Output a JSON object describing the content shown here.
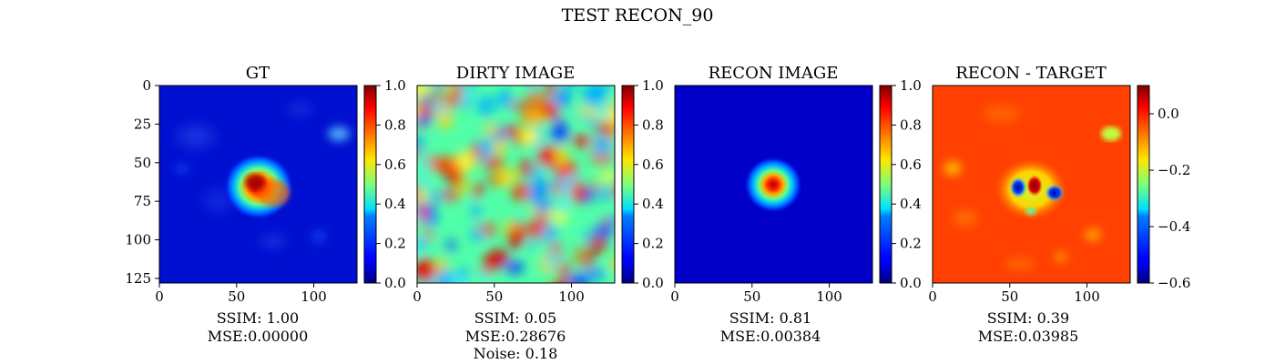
{
  "figure": {
    "suptitle": "TEST RECON_90"
  },
  "chart_data": [
    {
      "type": "heatmap",
      "title": "GT",
      "x_ticks": [
        0,
        50,
        100
      ],
      "y_ticks": [
        0,
        25,
        50,
        75,
        100,
        125
      ],
      "xlim": [
        0,
        128
      ],
      "ylim": [
        128,
        0
      ],
      "colormap": "jet",
      "colorbar": {
        "range": [
          0.0,
          1.0
        ],
        "ticks": [
          "0.0",
          "0.2",
          "0.4",
          "0.6",
          "0.8",
          "1.0"
        ]
      },
      "caption": [
        "SSIM: 1.00",
        "MSE:0.00000"
      ]
    },
    {
      "type": "heatmap",
      "title": "DIRTY IMAGE",
      "x_ticks": [
        0,
        50,
        100
      ],
      "xlim": [
        0,
        128
      ],
      "colormap": "jet",
      "colorbar": {
        "range": [
          0.0,
          1.0
        ],
        "ticks": [
          "0.0",
          "0.2",
          "0.4",
          "0.6",
          "0.8",
          "1.0"
        ]
      },
      "caption": [
        "SSIM: 0.05",
        "MSE:0.28676",
        "Noise: 0.18"
      ]
    },
    {
      "type": "heatmap",
      "title": "RECON IMAGE",
      "x_ticks": [
        0,
        50,
        100
      ],
      "xlim": [
        0,
        128
      ],
      "colormap": "jet",
      "colorbar": {
        "range": [
          0.0,
          1.0
        ],
        "ticks": [
          "0.0",
          "0.2",
          "0.4",
          "0.6",
          "0.8",
          "1.0"
        ]
      },
      "caption": [
        "SSIM: 0.81",
        "MSE:0.00384"
      ]
    },
    {
      "type": "heatmap",
      "title": "RECON - TARGET",
      "x_ticks": [
        0,
        50,
        100
      ],
      "xlim": [
        0,
        128
      ],
      "colormap": "jet",
      "colorbar": {
        "range": [
          -0.6,
          0.1
        ],
        "ticks": [
          "0.0",
          "−0.2",
          "−0.4",
          "−0.6"
        ],
        "tick_values": [
          0.0,
          -0.2,
          -0.4,
          -0.6
        ]
      },
      "caption": [
        "SSIM: 0.39",
        "MSE:0.03985"
      ]
    }
  ]
}
